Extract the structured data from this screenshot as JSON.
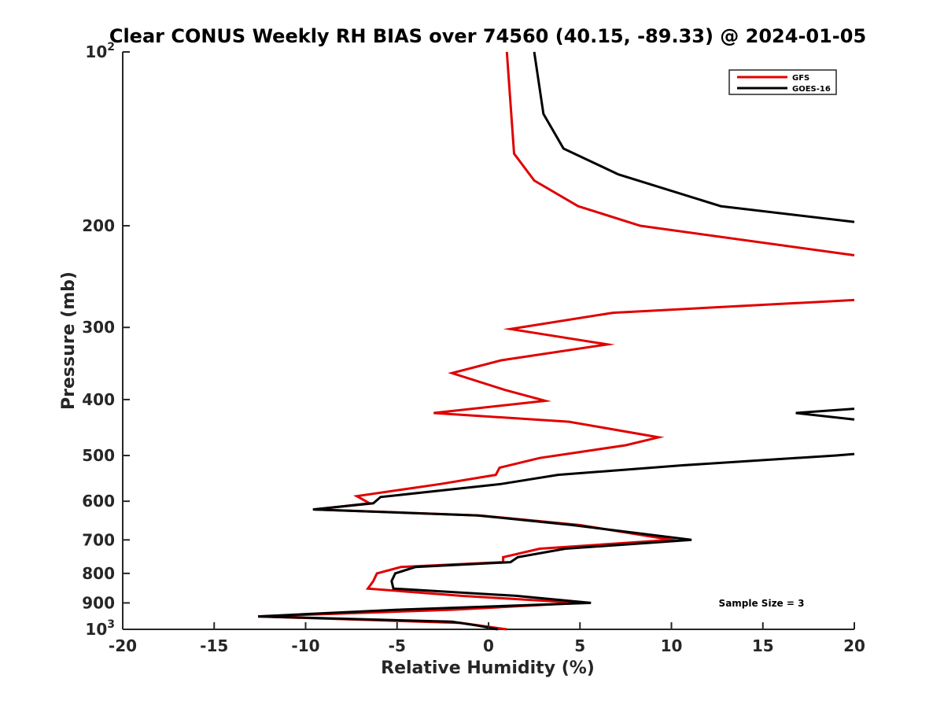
{
  "chart_data": {
    "type": "line",
    "title": "Clear CONUS Weekly RH BIAS over 74560 (40.15, -89.33) @ 2024-01-05",
    "xlabel": "Relative Humidity (%)",
    "ylabel": "Pressure (mb)",
    "xlim": [
      -20,
      20
    ],
    "ylim": [
      100,
      1000
    ],
    "y_scale": "log",
    "y_reversed": true,
    "x_ticks": [
      "-20",
      "-15",
      "-10",
      "-5",
      "0",
      "5",
      "10",
      "15",
      "20"
    ],
    "y_ticks": [
      {
        "value": 100,
        "base": "10",
        "exp": "2"
      },
      {
        "value": 200,
        "label": "200"
      },
      {
        "value": 300,
        "label": "300"
      },
      {
        "value": 400,
        "label": "400"
      },
      {
        "value": 500,
        "label": "500"
      },
      {
        "value": 600,
        "label": "600"
      },
      {
        "value": 700,
        "label": "700"
      },
      {
        "value": 800,
        "label": "800"
      },
      {
        "value": 900,
        "label": "900"
      },
      {
        "value": 1000,
        "base": "10",
        "exp": "3"
      }
    ],
    "grid": false,
    "legend_position": "top-right",
    "annotation": "Sample Size = 3",
    "series": [
      {
        "name": "GFS",
        "color": "#e00000",
        "points": [
          [
            1.0,
            1000
          ],
          [
            -1.5,
            975
          ],
          [
            -12.6,
            950
          ],
          [
            -2.0,
            925
          ],
          [
            5.0,
            900
          ],
          [
            -1.5,
            875
          ],
          [
            -6.6,
            850
          ],
          [
            -6.3,
            825
          ],
          [
            -6.1,
            800
          ],
          [
            -4.8,
            780
          ],
          [
            0.8,
            765
          ],
          [
            0.8,
            750
          ],
          [
            2.8,
            725
          ],
          [
            10.0,
            700
          ],
          [
            5.0,
            660
          ],
          [
            -0.5,
            635
          ],
          [
            -9.5,
            620
          ],
          [
            -6.5,
            605
          ],
          [
            -7.2,
            588
          ],
          [
            -2.6,
            560
          ],
          [
            0.4,
            540
          ],
          [
            0.6,
            525
          ],
          [
            2.8,
            505
          ],
          [
            7.5,
            480
          ],
          [
            9.3,
            465
          ],
          [
            4.4,
            437
          ],
          [
            -3.0,
            422
          ],
          [
            3.1,
            402
          ],
          [
            0.9,
            385
          ],
          [
            -2.0,
            360
          ],
          [
            0.7,
            342
          ],
          [
            6.5,
            321
          ],
          [
            1.2,
            302
          ],
          [
            6.8,
            283
          ],
          [
            20.0,
            269
          ],
          null,
          [
            20.0,
            225
          ],
          [
            8.3,
            200
          ],
          [
            4.9,
            185
          ],
          [
            2.5,
            167
          ],
          [
            1.4,
            150
          ],
          [
            1.0,
            100
          ]
        ]
      },
      {
        "name": "GOES-16",
        "color": "#000000",
        "points": [
          [
            0.5,
            1000
          ],
          [
            -0.6,
            985
          ],
          [
            -2.0,
            970
          ],
          [
            -12.6,
            950
          ],
          [
            -5.0,
            925
          ],
          [
            5.6,
            900
          ],
          [
            1.5,
            875
          ],
          [
            -5.2,
            850
          ],
          [
            -5.3,
            825
          ],
          [
            -5.1,
            800
          ],
          [
            -4.0,
            780
          ],
          [
            1.2,
            765
          ],
          [
            1.6,
            750
          ],
          [
            4.2,
            725
          ],
          [
            11.1,
            700
          ],
          [
            4.6,
            660
          ],
          [
            -0.6,
            635
          ],
          [
            -9.6,
            620
          ],
          [
            -6.3,
            605
          ],
          [
            -5.9,
            590
          ],
          [
            0.7,
            560
          ],
          [
            3.8,
            540
          ],
          [
            10.6,
            520
          ],
          [
            19.0,
            500
          ],
          [
            20.0,
            497
          ],
          null,
          [
            20.0,
            433
          ],
          [
            16.8,
            422
          ],
          [
            20.0,
            415
          ],
          null,
          [
            20.0,
            197
          ],
          [
            12.7,
            185
          ],
          [
            7.1,
            163
          ],
          [
            4.1,
            147
          ],
          [
            3.0,
            128
          ],
          [
            2.5,
            100
          ]
        ]
      }
    ]
  }
}
